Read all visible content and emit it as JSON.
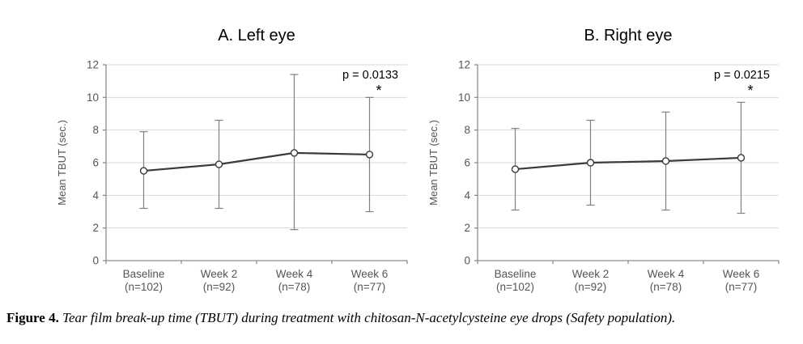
{
  "figure": {
    "caption_label": "Figure 4.",
    "caption_text": "Tear film break-up time (TBUT) during treatment with chitosan-N-acetylcysteine eye drops (Safety population)."
  },
  "colors": {
    "grid": "#d9d9d9",
    "axis": "#8c8c8c",
    "series_line": "#3a3a3a",
    "marker_fill": "#ffffff",
    "marker_stroke": "#3a3a3a",
    "error_bar": "#808080",
    "text_primary": "#000000",
    "text_secondary": "#555555"
  },
  "chart_data": [
    {
      "type": "line",
      "title": "A. Left eye",
      "ylabel": "Mean TBUT (sec.)",
      "xlabel": "",
      "ylim": [
        0,
        12
      ],
      "yticks": [
        0,
        2,
        4,
        6,
        8,
        10,
        12
      ],
      "grid": "horizontal",
      "legend": "none",
      "categories": [
        "Baseline",
        "Week 2",
        "Week 4",
        "Week 6"
      ],
      "category_sublabels": [
        "(n=102)",
        "(n=92)",
        "(n=78)",
        "(n=77)"
      ],
      "series": [
        {
          "name": "Mean TBUT left eye",
          "values": [
            5.5,
            5.9,
            6.6,
            6.5
          ],
          "err_low": [
            3.2,
            3.2,
            1.9,
            3.0
          ],
          "err_high": [
            7.9,
            8.6,
            11.4,
            10.0
          ]
        }
      ],
      "annotation": {
        "p_label": "p = 0.0133",
        "marker": "*",
        "at_category": "Week 6"
      }
    },
    {
      "type": "line",
      "title": "B. Right eye",
      "ylabel": "Mean TBUT (sec.)",
      "xlabel": "",
      "ylim": [
        0,
        12
      ],
      "yticks": [
        0,
        2,
        4,
        6,
        8,
        10,
        12
      ],
      "grid": "horizontal",
      "legend": "none",
      "categories": [
        "Baseline",
        "Week 2",
        "Week 4",
        "Week 6"
      ],
      "category_sublabels": [
        "(n=102)",
        "(n=92)",
        "(n=78)",
        "(n=77)"
      ],
      "series": [
        {
          "name": "Mean TBUT right eye",
          "values": [
            5.6,
            6.0,
            6.1,
            6.3
          ],
          "err_low": [
            3.1,
            3.4,
            3.1,
            2.9
          ],
          "err_high": [
            8.1,
            8.6,
            9.1,
            9.7
          ]
        }
      ],
      "annotation": {
        "p_label": "p = 0.0215",
        "marker": "*",
        "at_category": "Week 6"
      }
    }
  ]
}
